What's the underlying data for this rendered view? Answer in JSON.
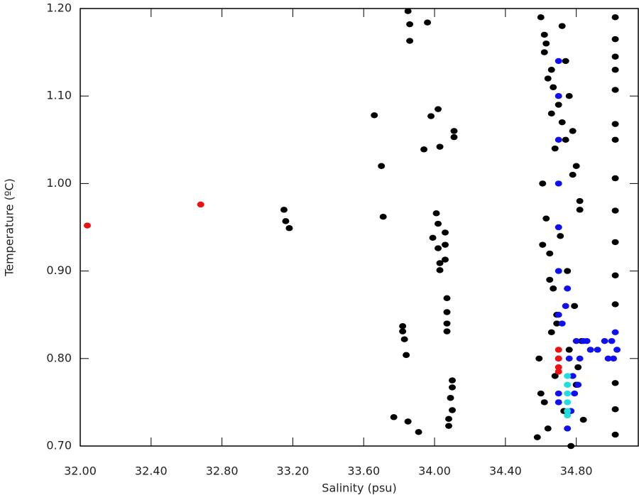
{
  "chart_data": {
    "type": "scatter",
    "x_label": "Salinity (psu)",
    "y_label": "Temperature (ºC)",
    "xlim": [
      32.0,
      35.15
    ],
    "ylim": [
      0.7,
      1.2
    ],
    "xticks": [
      {
        "value": 32.0,
        "label": "32.00"
      },
      {
        "value": 32.4,
        "label": "32.40"
      },
      {
        "value": 32.8,
        "label": "32.80"
      },
      {
        "value": 33.2,
        "label": "33.20"
      },
      {
        "value": 33.6,
        "label": "33.60"
      },
      {
        "value": 34.0,
        "label": "34.00"
      },
      {
        "value": 34.4,
        "label": "34.40"
      },
      {
        "value": 34.8,
        "label": "34.80"
      }
    ],
    "yticks": [
      {
        "value": 0.7,
        "label": "0.70"
      },
      {
        "value": 0.8,
        "label": "0.80"
      },
      {
        "value": 0.9,
        "label": "0.90"
      },
      {
        "value": 1.0,
        "label": "1.00"
      },
      {
        "value": 1.1,
        "label": "1.10"
      },
      {
        "value": 1.2,
        "label": "1.20"
      }
    ],
    "series": [
      {
        "color": "#000000",
        "x": [
          33.15,
          33.16,
          33.18,
          33.66,
          33.7,
          33.71,
          33.85,
          33.86,
          33.86,
          33.96,
          33.77,
          33.82,
          33.82,
          33.83,
          33.84,
          33.85,
          33.91,
          33.94,
          33.98,
          34.02,
          34.03,
          33.99,
          34.01,
          34.02,
          34.02,
          34.03,
          34.03,
          34.06,
          34.06,
          34.06,
          34.07,
          34.07,
          34.07,
          34.07,
          34.08,
          34.08,
          34.09,
          34.1,
          34.1,
          34.11,
          34.11,
          34.1,
          35.02,
          35.02,
          35.02,
          35.02,
          35.02,
          35.02,
          35.02,
          35.02,
          35.02,
          35.02,
          35.02,
          35.02,
          35.02,
          35.02,
          35.02,
          34.6,
          34.62,
          34.64,
          34.66,
          34.68,
          34.61,
          34.63,
          34.65,
          34.67,
          34.69,
          34.72,
          34.74,
          34.76,
          34.78,
          34.8,
          34.82,
          34.59,
          34.71,
          34.75,
          34.79,
          34.83,
          34.6,
          34.64,
          34.68,
          34.73,
          34.77,
          34.81,
          34.62,
          34.66,
          34.7,
          34.74,
          34.78,
          34.82,
          34.61,
          34.65,
          34.69,
          34.76,
          34.8,
          34.84,
          34.63,
          34.67,
          34.72,
          34.58,
          34.62,
          34.66
        ],
        "y": [
          0.97,
          0.957,
          0.949,
          1.078,
          1.02,
          0.962,
          1.197,
          1.182,
          1.163,
          1.184,
          0.733,
          0.837,
          0.831,
          0.822,
          0.804,
          0.728,
          0.716,
          1.039,
          1.077,
          1.085,
          1.042,
          0.938,
          0.966,
          0.954,
          0.926,
          0.909,
          0.901,
          0.944,
          0.93,
          0.913,
          0.869,
          0.853,
          0.84,
          0.831,
          0.731,
          0.723,
          0.755,
          0.775,
          0.767,
          1.06,
          1.053,
          0.741,
          1.19,
          1.165,
          1.145,
          1.13,
          1.107,
          1.068,
          1.05,
          1.006,
          0.969,
          0.933,
          0.895,
          0.862,
          0.772,
          0.742,
          0.713,
          1.19,
          1.15,
          1.12,
          1.08,
          1.04,
          1.0,
          0.96,
          0.92,
          0.88,
          0.84,
          1.18,
          1.14,
          1.1,
          1.06,
          1.02,
          0.98,
          0.8,
          0.94,
          0.9,
          0.86,
          0.82,
          0.76,
          0.72,
          0.78,
          0.74,
          0.7,
          0.79,
          1.17,
          1.13,
          1.09,
          1.05,
          1.01,
          0.97,
          0.93,
          0.89,
          0.85,
          0.81,
          0.77,
          0.73,
          1.16,
          1.11,
          1.07,
          0.71,
          0.75,
          0.83
        ]
      },
      {
        "color": "#1010ee",
        "x": [
          34.7,
          34.7,
          34.7,
          34.7,
          34.7,
          34.7,
          34.7,
          34.7,
          34.7,
          34.7,
          34.72,
          34.74,
          34.75,
          34.76,
          34.78,
          34.8,
          34.82,
          34.77,
          34.75,
          34.79,
          34.84,
          34.88,
          34.92,
          34.96,
          34.98,
          35.0,
          35.02,
          35.03,
          35.01,
          34.86,
          34.81
        ],
        "y": [
          1.14,
          1.1,
          1.05,
          1.0,
          0.95,
          0.9,
          0.85,
          0.8,
          0.76,
          0.75,
          0.84,
          0.86,
          0.88,
          0.8,
          0.78,
          0.82,
          0.8,
          0.74,
          0.72,
          0.76,
          0.82,
          0.81,
          0.81,
          0.82,
          0.8,
          0.82,
          0.83,
          0.81,
          0.8,
          0.82,
          0.77
        ]
      },
      {
        "color": "#22dddd",
        "x": [
          34.75,
          34.75,
          34.75,
          34.75,
          34.75,
          34.75
        ],
        "y": [
          0.78,
          0.77,
          0.76,
          0.75,
          0.74,
          0.735
        ]
      },
      {
        "color": "#ee1111",
        "x": [
          32.04,
          32.68,
          34.7,
          34.7,
          34.7,
          34.7
        ],
        "y": [
          0.952,
          0.976,
          0.81,
          0.8,
          0.79,
          0.785
        ]
      }
    ]
  }
}
